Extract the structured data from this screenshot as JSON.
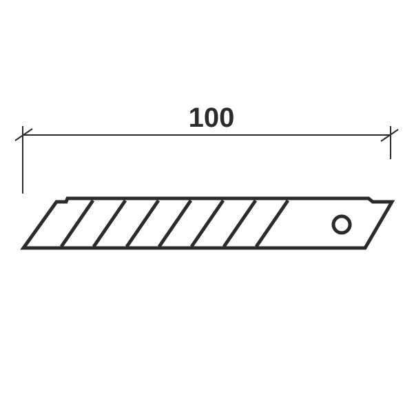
{
  "dimension": {
    "length_label": "100"
  },
  "colors": {
    "stroke": "#2b2b2b",
    "background": "#ffffff"
  },
  "blade": {
    "segment_count": 8,
    "has_mount_hole": true
  }
}
